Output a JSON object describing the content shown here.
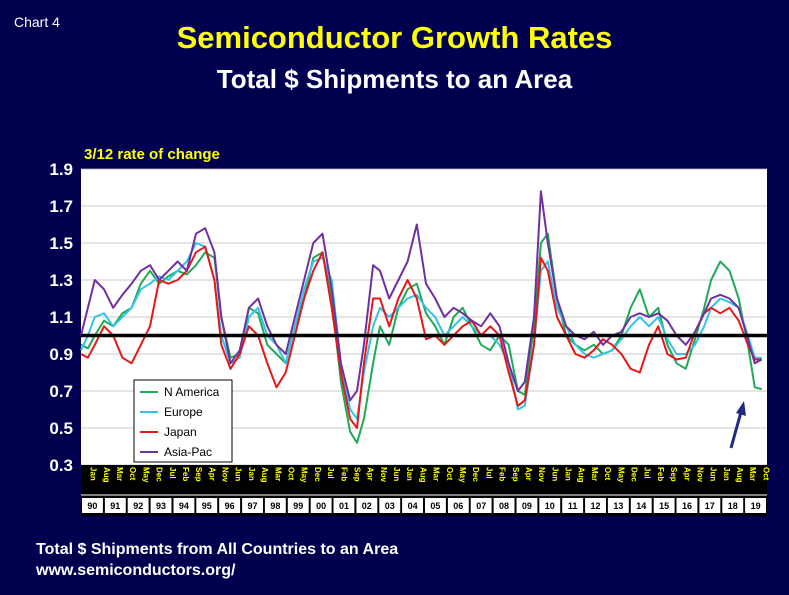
{
  "header": {
    "chart_number": "Chart 4",
    "title": "Semiconductor Growth Rates",
    "subtitle": "Total $ Shipments to an Area"
  },
  "footer": {
    "line1": "Total $ Shipments from All Countries to an Area",
    "line2": "www.semiconductors.org/"
  },
  "colors": {
    "background": "#00004e",
    "n_america": "#1faa55",
    "europe": "#33c3e8",
    "japan": "#e3191b",
    "asia_pac": "#7030a0",
    "reference_line": "#000000",
    "arrow": "#1f2a80"
  },
  "chart_data": {
    "type": "line",
    "title": "Semiconductor Growth Rates",
    "subtitle": "Total $ Shipments to an Area",
    "ylabel": "3/12 rate of change",
    "ylim": [
      0.3,
      1.9
    ],
    "yticks": [
      "0.3",
      "0.5",
      "0.7",
      "0.9",
      "1.1",
      "1.3",
      "1.5",
      "1.7",
      "1.9"
    ],
    "xlim": [
      1990.0,
      2019.83
    ],
    "grid": true,
    "legend_position": "lower-left",
    "reference_line": 1.0,
    "month_ticks": [
      "Jan",
      "Aug",
      "Mar",
      "Oct",
      "May",
      "Dec",
      "Jul",
      "Feb",
      "Sep",
      "Apr",
      "Nov",
      "Jun",
      "Jan",
      "Aug",
      "Mar",
      "Oct",
      "May",
      "Dec",
      "Jul",
      "Feb",
      "Sep",
      "Apr",
      "Nov",
      "Jun",
      "Jan",
      "Aug",
      "Mar",
      "Oct",
      "May",
      "Dec",
      "Jul",
      "Feb",
      "Sep",
      "Apr",
      "Nov",
      "Jun",
      "Jan",
      "Aug",
      "Mar",
      "Oct",
      "May",
      "Dec",
      "Jul",
      "Feb",
      "Sep",
      "Apr",
      "Nov",
      "Jun",
      "Jan",
      "Aug",
      "Mar",
      "Oct"
    ],
    "year_ticks": [
      "90",
      "91",
      "92",
      "93",
      "94",
      "95",
      "96",
      "97",
      "98",
      "99",
      "00",
      "01",
      "02",
      "03",
      "04",
      "05",
      "06",
      "07",
      "08",
      "09",
      "10",
      "11",
      "12",
      "13",
      "14",
      "15",
      "16",
      "17",
      "18",
      "19"
    ],
    "series": [
      {
        "name": "N America",
        "color": "#1faa55",
        "x": [
          1990.0,
          1990.3,
          1990.6,
          1991.0,
          1991.4,
          1991.8,
          1992.2,
          1992.6,
          1993.0,
          1993.4,
          1993.8,
          1994.2,
          1994.6,
          1995.0,
          1995.4,
          1995.8,
          1996.1,
          1996.5,
          1996.9,
          1997.3,
          1997.7,
          1998.1,
          1998.5,
          1998.9,
          1999.3,
          1999.7,
          2000.1,
          2000.5,
          2000.9,
          2001.3,
          2001.7,
          2002.0,
          2002.3,
          2002.7,
          2003.0,
          2003.4,
          2003.8,
          2004.2,
          2004.6,
          2005.0,
          2005.4,
          2005.8,
          2006.2,
          2006.6,
          2007.0,
          2007.4,
          2007.8,
          2008.2,
          2008.6,
          2009.0,
          2009.3,
          2009.7,
          2010.0,
          2010.3,
          2010.7,
          2011.1,
          2011.5,
          2011.9,
          2012.3,
          2012.7,
          2013.1,
          2013.5,
          2013.9,
          2014.3,
          2014.7,
          2015.1,
          2015.5,
          2015.9,
          2016.3,
          2016.7,
          2017.1,
          2017.4,
          2017.8,
          2018.2,
          2018.6,
          2019.0,
          2019.3,
          2019.6
        ],
        "y": [
          0.95,
          0.93,
          1.0,
          1.08,
          1.05,
          1.12,
          1.15,
          1.28,
          1.35,
          1.28,
          1.32,
          1.35,
          1.33,
          1.38,
          1.45,
          1.42,
          1.1,
          0.88,
          0.9,
          1.15,
          1.12,
          0.95,
          0.9,
          0.85,
          1.05,
          1.2,
          1.42,
          1.45,
          1.2,
          0.75,
          0.48,
          0.42,
          0.55,
          0.85,
          1.05,
          0.95,
          1.15,
          1.25,
          1.28,
          1.12,
          1.05,
          0.95,
          1.1,
          1.15,
          1.05,
          0.95,
          0.92,
          1.0,
          0.95,
          0.7,
          0.68,
          1.05,
          1.5,
          1.55,
          1.2,
          1.0,
          0.95,
          0.92,
          0.95,
          0.9,
          0.92,
          1.0,
          1.15,
          1.25,
          1.1,
          1.15,
          0.95,
          0.85,
          0.82,
          0.98,
          1.15,
          1.3,
          1.4,
          1.35,
          1.2,
          0.95,
          0.72,
          0.71
        ]
      },
      {
        "name": "Europe",
        "color": "#33c3e8",
        "x": [
          1990.0,
          1990.3,
          1990.6,
          1991.0,
          1991.4,
          1991.8,
          1992.2,
          1992.6,
          1993.0,
          1993.4,
          1993.8,
          1994.2,
          1994.6,
          1995.0,
          1995.4,
          1995.8,
          1996.1,
          1996.5,
          1996.9,
          1997.3,
          1997.7,
          1998.1,
          1998.5,
          1998.9,
          1999.3,
          1999.7,
          2000.1,
          2000.5,
          2000.9,
          2001.3,
          2001.7,
          2002.0,
          2002.3,
          2002.7,
          2003.0,
          2003.4,
          2003.8,
          2004.2,
          2004.6,
          2005.0,
          2005.4,
          2005.8,
          2006.2,
          2006.6,
          2007.0,
          2007.4,
          2007.8,
          2008.2,
          2008.6,
          2009.0,
          2009.3,
          2009.7,
          2010.0,
          2010.3,
          2010.7,
          2011.1,
          2011.5,
          2011.9,
          2012.3,
          2012.7,
          2013.1,
          2013.5,
          2013.9,
          2014.3,
          2014.7,
          2015.1,
          2015.5,
          2015.9,
          2016.3,
          2016.7,
          2017.1,
          2017.4,
          2017.8,
          2018.2,
          2018.6,
          2019.0,
          2019.3,
          2019.6
        ],
        "y": [
          0.92,
          1.0,
          1.1,
          1.12,
          1.05,
          1.1,
          1.15,
          1.25,
          1.28,
          1.32,
          1.3,
          1.35,
          1.4,
          1.5,
          1.48,
          1.3,
          1.0,
          0.85,
          0.88,
          1.1,
          1.15,
          1.0,
          0.95,
          0.85,
          1.05,
          1.25,
          1.4,
          1.42,
          1.3,
          0.85,
          0.6,
          0.55,
          0.8,
          1.05,
          1.15,
          1.1,
          1.15,
          1.2,
          1.22,
          1.15,
          1.1,
          1.0,
          1.05,
          1.1,
          1.05,
          1.0,
          1.0,
          0.95,
          0.85,
          0.6,
          0.62,
          0.95,
          1.35,
          1.4,
          1.15,
          1.05,
          0.95,
          0.9,
          0.88,
          0.9,
          0.92,
          0.98,
          1.05,
          1.1,
          1.05,
          1.1,
          0.98,
          0.9,
          0.9,
          0.95,
          1.05,
          1.15,
          1.2,
          1.18,
          1.15,
          1.0,
          0.88,
          0.88
        ]
      },
      {
        "name": "Japan",
        "color": "#e3191b",
        "x": [
          1990.0,
          1990.3,
          1990.6,
          1991.0,
          1991.4,
          1991.8,
          1992.2,
          1992.6,
          1993.0,
          1993.4,
          1993.8,
          1994.2,
          1994.6,
          1995.0,
          1995.4,
          1995.8,
          1996.1,
          1996.5,
          1996.9,
          1997.3,
          1997.7,
          1998.1,
          1998.5,
          1998.9,
          1999.3,
          1999.7,
          2000.1,
          2000.5,
          2000.9,
          2001.3,
          2001.7,
          2002.0,
          2002.3,
          2002.7,
          2003.0,
          2003.4,
          2003.8,
          2004.2,
          2004.6,
          2005.0,
          2005.4,
          2005.8,
          2006.2,
          2006.6,
          2007.0,
          2007.4,
          2007.8,
          2008.2,
          2008.6,
          2009.0,
          2009.3,
          2009.7,
          2010.0,
          2010.3,
          2010.7,
          2011.1,
          2011.5,
          2011.9,
          2012.3,
          2012.7,
          2013.1,
          2013.5,
          2013.9,
          2014.3,
          2014.7,
          2015.1,
          2015.5,
          2015.9,
          2016.3,
          2016.7,
          2017.1,
          2017.4,
          2017.8,
          2018.2,
          2018.6,
          2019.0,
          2019.3,
          2019.6
        ],
        "y": [
          0.9,
          0.88,
          0.95,
          1.05,
          1.0,
          0.88,
          0.85,
          0.95,
          1.05,
          1.3,
          1.28,
          1.3,
          1.35,
          1.45,
          1.48,
          1.3,
          0.95,
          0.82,
          0.9,
          1.05,
          1.0,
          0.85,
          0.72,
          0.8,
          1.0,
          1.2,
          1.35,
          1.45,
          1.15,
          0.8,
          0.55,
          0.5,
          0.85,
          1.2,
          1.2,
          1.05,
          1.2,
          1.3,
          1.2,
          0.98,
          1.0,
          0.95,
          1.0,
          1.05,
          1.08,
          1.0,
          1.05,
          1.0,
          0.8,
          0.62,
          0.65,
          0.95,
          1.42,
          1.35,
          1.1,
          1.0,
          0.9,
          0.88,
          0.92,
          0.98,
          0.95,
          0.9,
          0.82,
          0.8,
          0.95,
          1.05,
          0.9,
          0.87,
          0.88,
          1.02,
          1.12,
          1.15,
          1.12,
          1.15,
          1.08,
          0.95,
          0.87,
          0.87
        ]
      },
      {
        "name": "Asia-Pac",
        "color": "#7030a0",
        "x": [
          1990.0,
          1990.3,
          1990.6,
          1991.0,
          1991.4,
          1991.8,
          1992.2,
          1992.6,
          1993.0,
          1993.4,
          1993.8,
          1994.2,
          1994.6,
          1995.0,
          1995.4,
          1995.8,
          1996.1,
          1996.5,
          1996.9,
          1997.3,
          1997.7,
          1998.1,
          1998.5,
          1998.9,
          1999.3,
          1999.7,
          2000.1,
          2000.5,
          2000.9,
          2001.3,
          2001.7,
          2002.0,
          2002.3,
          2002.7,
          2003.0,
          2003.4,
          2003.8,
          2004.2,
          2004.6,
          2005.0,
          2005.4,
          2005.8,
          2006.2,
          2006.6,
          2007.0,
          2007.4,
          2007.8,
          2008.2,
          2008.6,
          2009.0,
          2009.3,
          2009.7,
          2010.0,
          2010.3,
          2010.7,
          2011.1,
          2011.5,
          2011.9,
          2012.3,
          2012.7,
          2013.1,
          2013.5,
          2013.9,
          2014.3,
          2014.7,
          2015.1,
          2015.5,
          2015.9,
          2016.3,
          2016.7,
          2017.1,
          2017.4,
          2017.8,
          2018.2,
          2018.6,
          2019.0,
          2019.3,
          2019.6
        ],
        "y": [
          1.0,
          1.15,
          1.3,
          1.25,
          1.15,
          1.22,
          1.28,
          1.35,
          1.38,
          1.3,
          1.35,
          1.4,
          1.35,
          1.55,
          1.58,
          1.45,
          1.1,
          0.85,
          0.92,
          1.15,
          1.2,
          1.05,
          0.95,
          0.9,
          1.1,
          1.3,
          1.5,
          1.55,
          1.25,
          0.85,
          0.65,
          0.7,
          0.95,
          1.38,
          1.35,
          1.2,
          1.3,
          1.4,
          1.6,
          1.28,
          1.2,
          1.1,
          1.15,
          1.12,
          1.08,
          1.05,
          1.12,
          1.05,
          0.85,
          0.7,
          0.75,
          1.1,
          1.78,
          1.5,
          1.2,
          1.05,
          1.0,
          0.98,
          1.02,
          0.95,
          1.0,
          1.02,
          1.1,
          1.12,
          1.1,
          1.12,
          1.08,
          1.0,
          0.95,
          1.02,
          1.12,
          1.2,
          1.22,
          1.2,
          1.15,
          0.98,
          0.85,
          0.87
        ]
      }
    ]
  }
}
